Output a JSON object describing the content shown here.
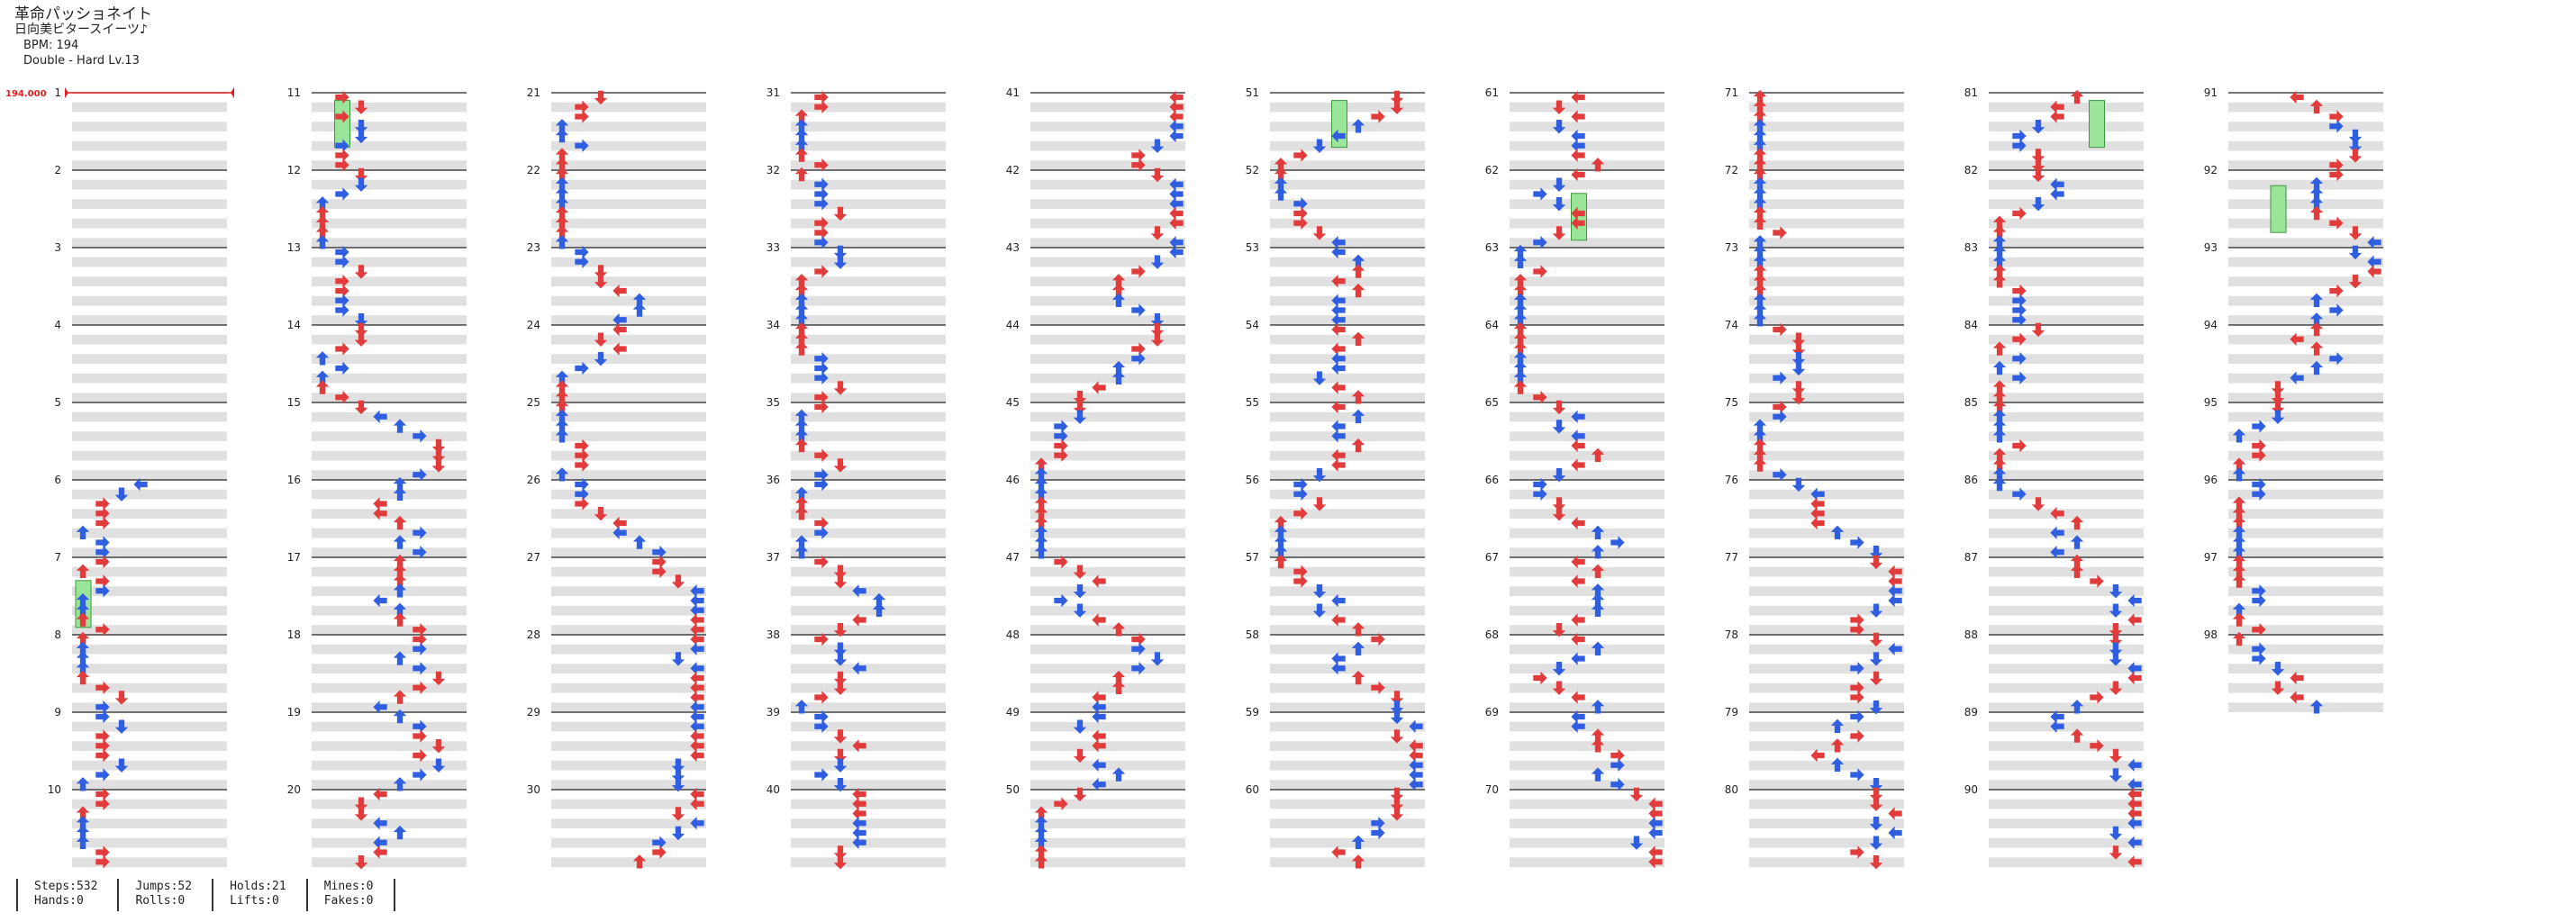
{
  "song": {
    "title": "革命パッショネイト",
    "artist": "日向美ビタースイーツ♪",
    "bpm": "BPM: 194",
    "difficulty": "Double - Hard  Lv.13"
  },
  "bpm_change": "194.000",
  "measures": [
    "1",
    "2",
    "3",
    "4",
    "5",
    "6",
    "7",
    "8",
    "9",
    "10",
    "11",
    "12",
    "13",
    "14",
    "15",
    "16",
    "17",
    "18",
    "19",
    "20",
    "21",
    "22",
    "23",
    "24",
    "25",
    "26",
    "27",
    "28",
    "29",
    "30",
    "31",
    "32",
    "33",
    "34",
    "35",
    "36",
    "37",
    "38",
    "39",
    "40",
    "41",
    "42",
    "43",
    "44",
    "45",
    "46",
    "47",
    "48",
    "49",
    "50",
    "51",
    "52",
    "53",
    "54",
    "55",
    "56",
    "57",
    "58",
    "59",
    "60",
    "61",
    "62",
    "63",
    "64",
    "65",
    "66",
    "67",
    "68",
    "69",
    "70",
    "71",
    "72",
    "73",
    "74",
    "75",
    "76",
    "77",
    "78",
    "79",
    "80",
    "81",
    "82",
    "83",
    "84",
    "85",
    "86",
    "87",
    "88",
    "89",
    "90",
    "91",
    "92",
    "93",
    "94",
    "95",
    "96",
    "97",
    "98"
  ],
  "stats": {
    "steps": "Steps:532",
    "hands": "Hands:0",
    "jumps": "Jumps:52",
    "rolls": "Rolls:0",
    "holds": "Holds:21",
    "lifts": "Lifts:0",
    "mines": "Mines:0",
    "fakes": "Fakes:0"
  },
  "colors": {
    "red_note": "#e23b3b",
    "blue_note": "#2f5ee0",
    "hold_body": "#9be59b",
    "bpm_marker": "#e02020",
    "stripe": "#e0e0e0"
  }
}
